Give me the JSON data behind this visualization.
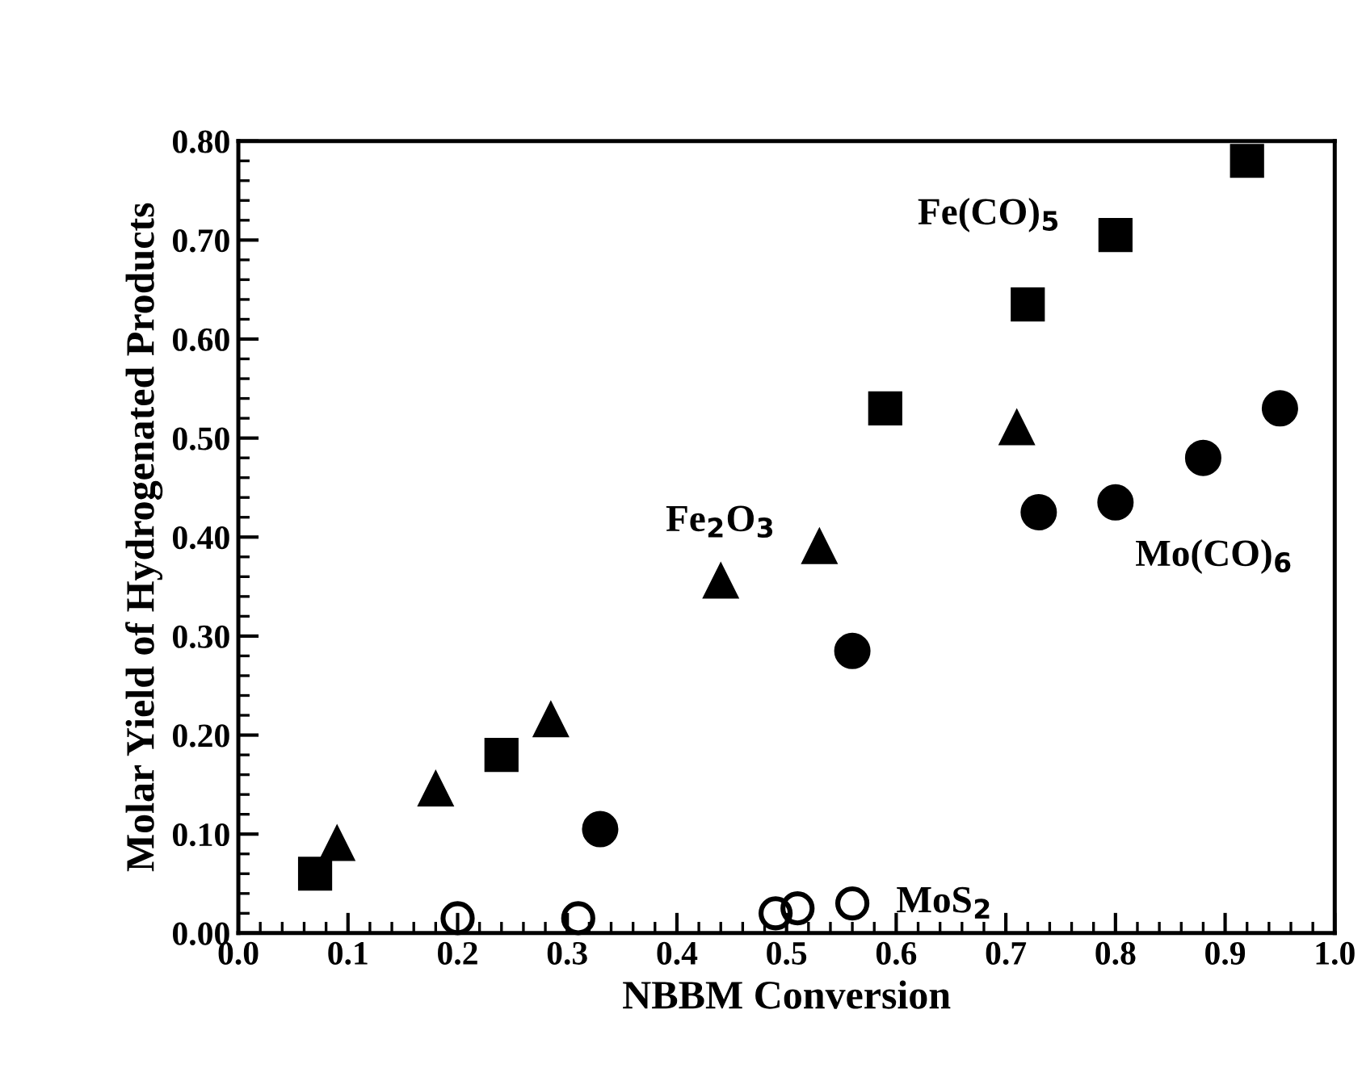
{
  "chart_data": {
    "type": "scatter",
    "xlabel": "NBBM Conversion",
    "ylabel": "Molar Yield of Hydrogenated Products",
    "xlim": [
      0,
      1
    ],
    "ylim": [
      0,
      0.8
    ],
    "xticks": [
      {
        "value": 0,
        "label": "0.0"
      },
      0.1,
      0.2,
      0.3,
      0.4,
      0.5,
      0.6,
      0.7,
      0.8,
      0.9,
      {
        "value": 1,
        "label": "1.0"
      }
    ],
    "yticks": [
      {
        "value": 0,
        "label": "0.00"
      },
      {
        "value": 0.1,
        "label": "0.10"
      },
      {
        "value": 0.2,
        "label": "0.20"
      },
      {
        "value": 0.3,
        "label": "0.30"
      },
      {
        "value": 0.4,
        "label": "0.40"
      },
      {
        "value": 0.5,
        "label": "0.50"
      },
      {
        "value": 0.6,
        "label": "0.60"
      },
      {
        "value": 0.7,
        "label": "0.70"
      },
      {
        "value": 0.8,
        "label": "0.80"
      }
    ],
    "grid": false,
    "legend": false,
    "series": [
      {
        "name": "Fe(CO)$_{5}$",
        "marker": "square",
        "color": "#000000",
        "x": [
          0.07,
          0.24,
          0.59,
          0.72,
          0.8,
          0.92
        ],
        "values": [
          0.06,
          0.18,
          0.53,
          0.635,
          0.705,
          0.78
        ]
      },
      {
        "name": "Fe$_{2}$O$_{3}$",
        "marker": "triangle",
        "color": "#000000",
        "x": [
          0.09,
          0.18,
          0.285,
          0.44,
          0.53,
          0.71
        ],
        "values": [
          0.09,
          0.145,
          0.215,
          0.355,
          0.39,
          0.51
        ]
      },
      {
        "name": "Mo(CO)$_{6}$",
        "marker": "circle",
        "color": "#000000",
        "x": [
          0.33,
          0.56,
          0.73,
          0.8,
          0.88,
          0.95
        ],
        "values": [
          0.105,
          0.285,
          0.425,
          0.435,
          0.48,
          0.53
        ]
      },
      {
        "name": "MoS$_{2}$",
        "marker": "circle-dot",
        "color": "#000000",
        "x": [
          0.2,
          0.31,
          0.49,
          0.51,
          0.56
        ],
        "values": [
          0.015,
          0.015,
          0.02,
          0.025,
          0.03
        ]
      }
    ]
  }
}
